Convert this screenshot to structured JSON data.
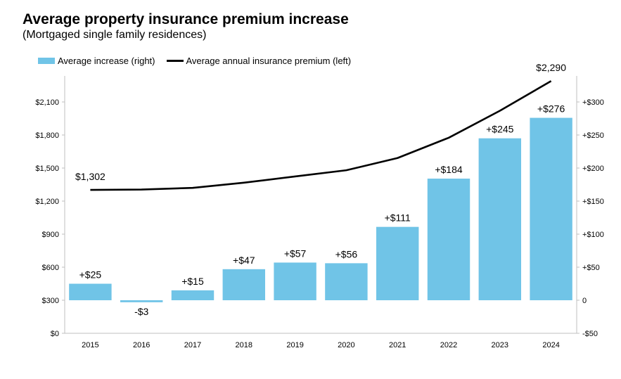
{
  "chart_data": {
    "type": "bar",
    "title": "Average property insurance premium increase",
    "subtitle": "(Mortgaged single family residences)",
    "categories": [
      "2015",
      "2016",
      "2017",
      "2018",
      "2019",
      "2020",
      "2021",
      "2022",
      "2023",
      "2024"
    ],
    "series": [
      {
        "name": "Average increase (right)",
        "type": "bar",
        "axis": "right",
        "color": "#70c4e7",
        "values": [
          25,
          -3,
          15,
          47,
          57,
          56,
          111,
          184,
          245,
          276
        ],
        "labels": [
          "+$25",
          "-$3",
          "+$15",
          "+$47",
          "+$57",
          "+$56",
          "+$111",
          "+$184",
          "+$245",
          "+$276"
        ]
      },
      {
        "name": "Average annual insurance premium (left)",
        "type": "line",
        "axis": "left",
        "color": "#000000",
        "values": [
          1302,
          1305,
          1320,
          1367,
          1424,
          1480,
          1591,
          1775,
          2020,
          2290
        ],
        "labels": [
          "$1,302",
          "",
          "",
          "",
          "",
          "",
          "",
          "",
          "",
          "$2,290"
        ]
      }
    ],
    "left_axis": {
      "ylim": [
        0,
        2100
      ],
      "ticks": [
        0,
        300,
        600,
        900,
        1200,
        1500,
        1800,
        2100
      ],
      "tick_labels": [
        "$0",
        "$300",
        "$600",
        "$900",
        "$1,200",
        "$1,500",
        "$1,800",
        "$2,100"
      ]
    },
    "right_axis": {
      "ylim": [
        -50,
        300
      ],
      "ticks": [
        -50,
        0,
        50,
        100,
        150,
        200,
        250,
        300
      ],
      "tick_labels": [
        "-$50",
        "0",
        "+$50",
        "+$100",
        "+$150",
        "+$200",
        "+$250",
        "+$300"
      ]
    },
    "legend_position": "top-left",
    "grid": false
  }
}
